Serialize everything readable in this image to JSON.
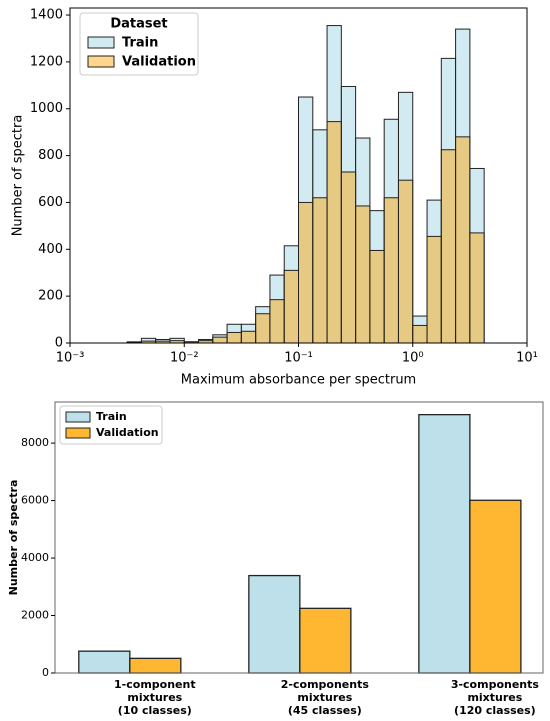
{
  "chart_data": [
    {
      "type": "histogram",
      "xlabel": "Maximum absorbance per spectrum",
      "ylabel": "Number of spectra",
      "x_scale": "log",
      "xlim": [
        0.001,
        10
      ],
      "xticks": [
        {
          "value": 0.001,
          "label": "10⁻³"
        },
        {
          "value": 0.01,
          "label": "10⁻²"
        },
        {
          "value": 0.1,
          "label": "10⁻¹"
        },
        {
          "value": 1,
          "label": "10⁰"
        },
        {
          "value": 10,
          "label": "10¹"
        }
      ],
      "ylim": [
        0,
        1430
      ],
      "yticks": [
        0,
        200,
        400,
        600,
        800,
        1000,
        1200,
        1400
      ],
      "bins": [
        0.003162,
        0.004217,
        0.005623,
        0.007499,
        0.01,
        0.01334,
        0.01778,
        0.02371,
        0.03162,
        0.04217,
        0.05623,
        0.07499,
        0.1,
        0.1334,
        0.1778,
        0.2371,
        0.3162,
        0.4217,
        0.5623,
        0.7499,
        1,
        1.334,
        1.778,
        2.371,
        3.162,
        4.217
      ],
      "series": [
        {
          "name": "Train",
          "color": "#add8e6",
          "values": [
            5,
            20,
            15,
            20,
            5,
            15,
            35,
            80,
            80,
            155,
            290,
            415,
            1050,
            910,
            1355,
            1095,
            875,
            565,
            955,
            1070,
            115,
            610,
            1215,
            1340,
            745
          ]
        },
        {
          "name": "Validation",
          "color": "#ffa500",
          "values": [
            3,
            8,
            8,
            10,
            5,
            10,
            25,
            45,
            50,
            125,
            185,
            310,
            600,
            620,
            945,
            730,
            585,
            395,
            620,
            695,
            75,
            455,
            825,
            880,
            470
          ]
        }
      ],
      "legend": {
        "title": "Dataset",
        "loc": "upper left"
      }
    },
    {
      "type": "bar",
      "ylabel": "Number of spectra",
      "categories": [
        "1-component\nmixtures\n(10 classes)",
        "2-components\nmixtures\n(45 classes)",
        "3-components\nmixtures\n(120 classes)"
      ],
      "ylim": [
        0,
        9430
      ],
      "yticks": [
        0,
        2000,
        4000,
        6000,
        8000
      ],
      "series": [
        {
          "name": "Train",
          "color": "#bde0ea",
          "values": [
            760,
            3390,
            8990
          ]
        },
        {
          "name": "Validation",
          "color": "#ffb631",
          "values": [
            510,
            2250,
            6010
          ]
        }
      ],
      "legend": {
        "loc": "upper left"
      }
    }
  ]
}
